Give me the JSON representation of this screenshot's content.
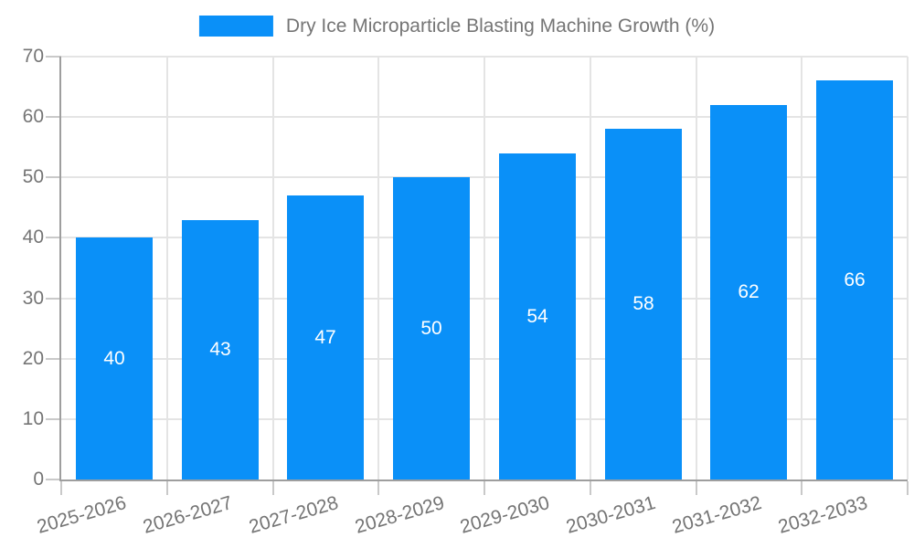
{
  "chart_data": {
    "type": "bar",
    "title": "Dry Ice Microparticle Blasting Machine Growth (%)",
    "legend": {
      "label": "Dry Ice Microparticle Blasting Machine Growth (%)",
      "position": "top-center"
    },
    "categories": [
      "2025-2026",
      "2026-2027",
      "2027-2028",
      "2028-2029",
      "2029-2030",
      "2030-2031",
      "2031-2032",
      "2032-2033"
    ],
    "values": [
      40,
      43,
      47,
      50,
      54,
      58,
      62,
      66
    ],
    "xlabel": "",
    "ylabel": "",
    "ylim": [
      0,
      70
    ],
    "yticks": [
      0,
      10,
      20,
      30,
      40,
      50,
      60,
      70
    ],
    "grid": {
      "horizontal": true,
      "vertical": true
    },
    "bar_labels": {
      "show": true,
      "position": "inside-center"
    },
    "x_label_rotation_deg": -16,
    "colors": {
      "bar": "#0a90f8",
      "bar_label_text": "#ffffff",
      "grid": "#e4e4e4",
      "axis": "#9e9e9e",
      "tick_mark": "#c9c9c9",
      "tick_text": "#757575",
      "legend_text": "#757575",
      "background": "#ffffff"
    }
  }
}
